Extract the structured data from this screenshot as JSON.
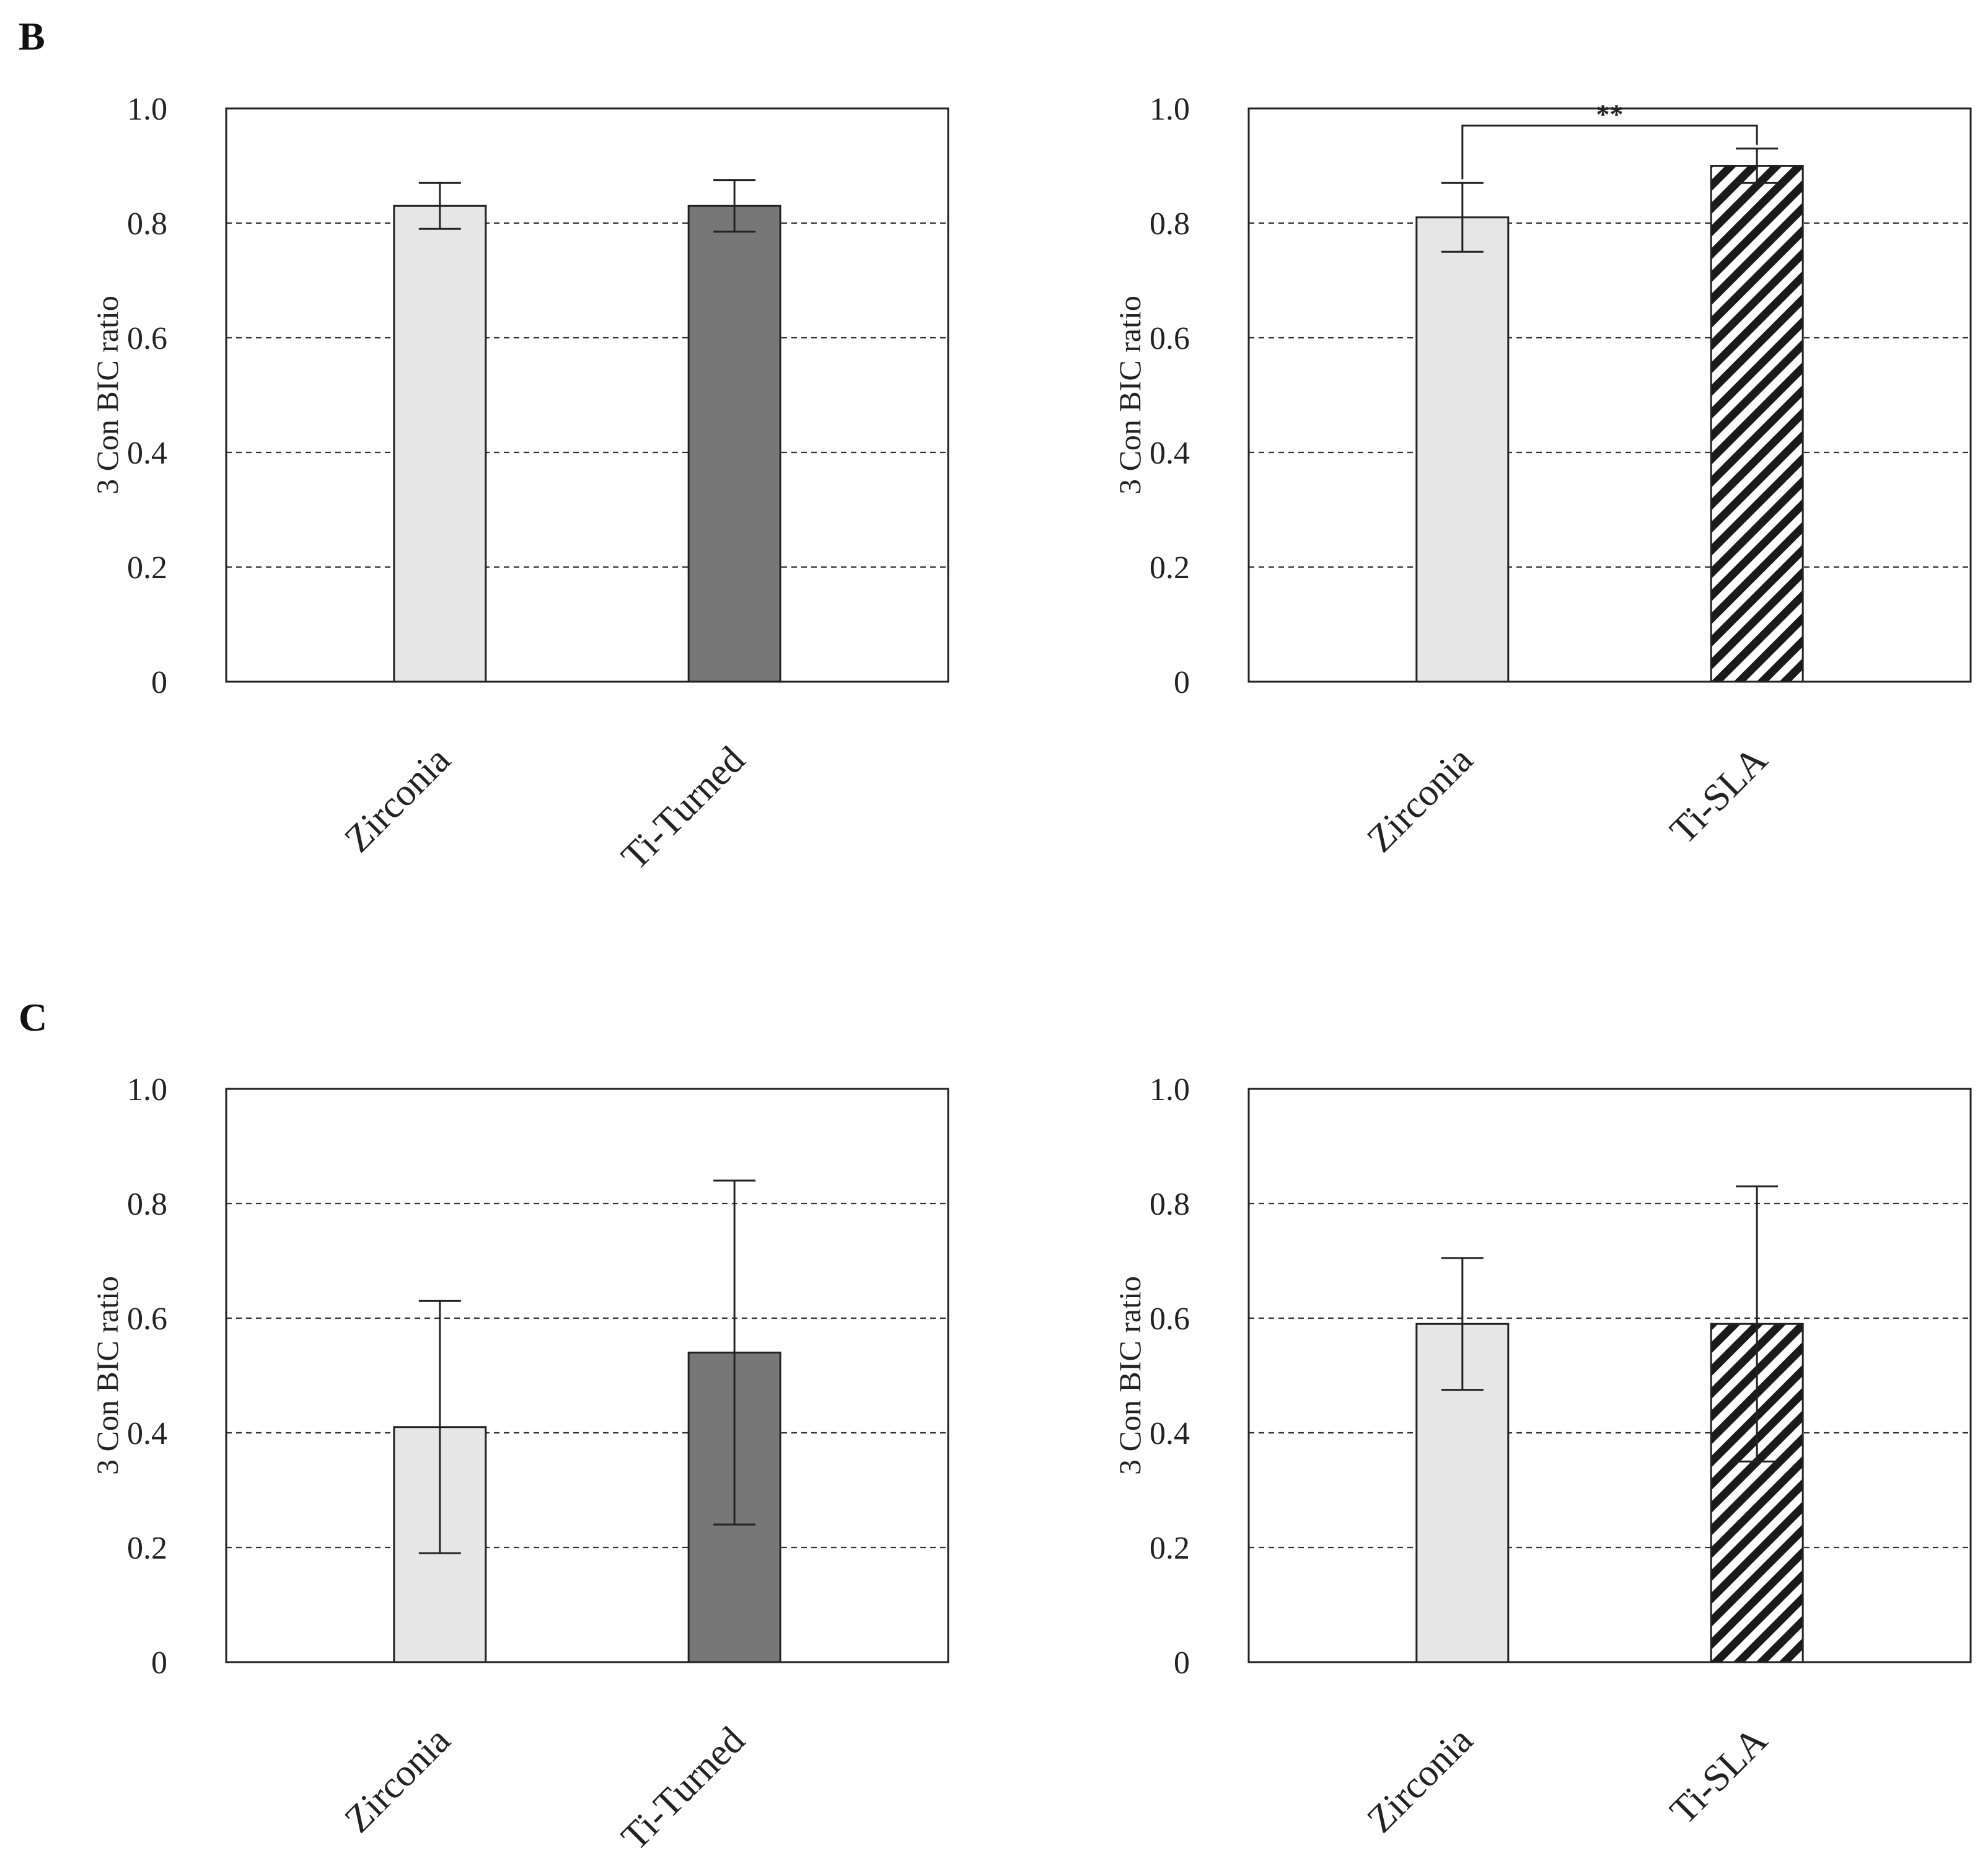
{
  "panel_labels": [
    "B",
    "C"
  ],
  "chart_data": [
    {
      "panel": "B",
      "type": "bar",
      "title": "",
      "xlabel": "",
      "ylabel": "3 Con BIC ratio",
      "ylim": [
        0,
        1.0
      ],
      "yticks": [
        "0",
        "0.2",
        "0.4",
        "0.6",
        "0.8",
        "1.0"
      ],
      "grid": "horizontal dashed",
      "categories": [
        "Zirconia",
        "Ti-Turned"
      ],
      "values": [
        0.83,
        0.83
      ],
      "errors": [
        0.04,
        0.045
      ],
      "bar_fill": [
        "#e6e6e6",
        "#777777"
      ],
      "bar_pattern": [
        "solid",
        "solid"
      ],
      "annotation": null
    },
    {
      "panel": "B",
      "type": "bar",
      "title": "",
      "xlabel": "",
      "ylabel": "3 Con BIC ratio",
      "ylim": [
        0,
        1.0
      ],
      "yticks": [
        "0",
        "0.2",
        "0.4",
        "0.6",
        "0.8",
        "1.0"
      ],
      "grid": "horizontal dashed",
      "categories": [
        "Zirconia",
        "Ti-SLA"
      ],
      "values": [
        0.81,
        0.9
      ],
      "errors": [
        0.06,
        0.03
      ],
      "bar_fill": [
        "#e6e6e6",
        "#ffffff"
      ],
      "bar_pattern": [
        "solid",
        "diagonal-stripes"
      ],
      "annotation": {
        "text": "**",
        "from": 0,
        "to": 1,
        "y": 0.97
      }
    },
    {
      "panel": "C",
      "type": "bar",
      "title": "",
      "xlabel": "",
      "ylabel": "3 Con BIC ratio",
      "ylim": [
        0,
        1.0
      ],
      "yticks": [
        "0",
        "0.2",
        "0.4",
        "0.6",
        "0.8",
        "1.0"
      ],
      "grid": "horizontal dashed",
      "categories": [
        "Zirconia",
        "Ti-Turned"
      ],
      "values": [
        0.41,
        0.54
      ],
      "errors": [
        0.22,
        0.3
      ],
      "bar_fill": [
        "#e6e6e6",
        "#777777"
      ],
      "bar_pattern": [
        "solid",
        "solid"
      ],
      "annotation": null
    },
    {
      "panel": "C",
      "type": "bar",
      "title": "",
      "xlabel": "",
      "ylabel": "3 Con BIC ratio",
      "ylim": [
        0,
        1.0
      ],
      "yticks": [
        "0",
        "0.2",
        "0.4",
        "0.6",
        "0.8",
        "1.0"
      ],
      "grid": "horizontal dashed",
      "categories": [
        "Zirconia",
        "Ti-SLA"
      ],
      "values": [
        0.59,
        0.59
      ],
      "errors": [
        0.115,
        0.24
      ],
      "bar_fill": [
        "#e6e6e6",
        "#ffffff"
      ],
      "bar_pattern": [
        "solid",
        "diagonal-stripes"
      ],
      "annotation": null
    }
  ]
}
